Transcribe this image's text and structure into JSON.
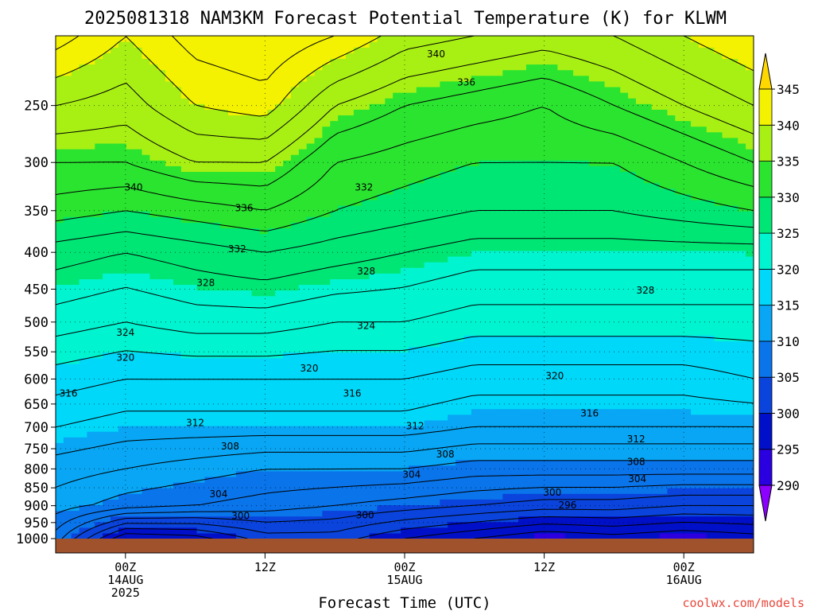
{
  "chart_data": {
    "type": "heatmap",
    "title": "2025081318 NAM3KM Forecast Potential Temperature (K) for KLWM",
    "xlabel": "Forecast Time (UTC)",
    "ylabel": "",
    "credit": "coolwx.com/models",
    "x_range_hours": [
      -6,
      54
    ],
    "x_ticks": [
      {
        "hour": 0,
        "lines": [
          "00Z",
          "14AUG",
          "2025"
        ]
      },
      {
        "hour": 12,
        "lines": [
          "12Z"
        ]
      },
      {
        "hour": 24,
        "lines": [
          "00Z",
          "15AUG"
        ]
      },
      {
        "hour": 36,
        "lines": [
          "12Z"
        ]
      },
      {
        "hour": 48,
        "lines": [
          "00Z",
          "16AUG"
        ]
      }
    ],
    "y_scale": "log",
    "y_range_hPa": [
      1000,
      200
    ],
    "y_ticks": [
      250,
      300,
      350,
      400,
      450,
      500,
      550,
      600,
      650,
      700,
      750,
      800,
      850,
      900,
      950,
      1000
    ],
    "colorbar": {
      "levels": [
        290,
        295,
        300,
        305,
        310,
        315,
        320,
        325,
        330,
        335,
        340,
        345
      ],
      "colors": [
        "#8c00ff",
        "#2a00e0",
        "#0010c8",
        "#0a44dc",
        "#0a74ea",
        "#08a6f4",
        "#00d8fa",
        "#00f4d0",
        "#00e674",
        "#2ae430",
        "#a8f014",
        "#f4f200",
        "#ffd800"
      ]
    },
    "theta_profiles": [
      {
        "hour": -6,
        "theta": [
          307,
          311,
          313,
          316,
          319,
          323,
          327,
          331,
          334,
          338,
          343
        ]
      },
      {
        "hour": 0,
        "theta": [
          296,
          309,
          312,
          315,
          318,
          322,
          326,
          330,
          334,
          337,
          340
        ]
      },
      {
        "hour": 6,
        "theta": [
          297,
          308,
          311,
          315,
          318,
          323,
          327,
          331,
          336,
          340,
          343
        ]
      },
      {
        "hour": 12,
        "theta": [
          301,
          307,
          310,
          315,
          318,
          323,
          328,
          332,
          336,
          341,
          344
        ]
      },
      {
        "hour": 18,
        "theta": [
          301,
          306,
          310,
          315,
          318,
          322,
          327,
          330,
          332,
          336,
          342
        ]
      },
      {
        "hour": 24,
        "theta": [
          298,
          305,
          310,
          315,
          318,
          322,
          326,
          329,
          331,
          334,
          339
        ]
      },
      {
        "hour": 30,
        "theta": [
          296,
          304,
          309,
          314,
          317,
          321,
          325,
          328,
          330,
          333,
          338
        ]
      },
      {
        "hour": 36,
        "theta": [
          294,
          303,
          309,
          314,
          317,
          321,
          325,
          328,
          330,
          332,
          337
        ]
      },
      {
        "hour": 42,
        "theta": [
          295,
          303,
          309,
          314,
          317,
          321,
          325,
          328,
          330,
          334,
          338
        ]
      },
      {
        "hour": 48,
        "theta": [
          294,
          302,
          309,
          314,
          317,
          321,
          325,
          329,
          332,
          336,
          340
        ]
      },
      {
        "hour": 54,
        "theta": [
          295,
          302,
          309,
          314,
          318,
          321,
          325,
          330,
          334,
          338,
          342
        ]
      }
    ],
    "profile_pressures_hPa": [
      1000,
      900,
      800,
      700,
      600,
      500,
      400,
      350,
      300,
      250,
      200
    ],
    "contour_interval": 2,
    "contour_labels": [
      {
        "text": "340",
        "hour": 0.7,
        "p": 325
      },
      {
        "hour": 26.7,
        "p": 212,
        "text": "340"
      },
      {
        "hour": 29.3,
        "p": 232,
        "text": "336"
      },
      {
        "hour": 10.2,
        "p": 347,
        "text": "336"
      },
      {
        "hour": 20.5,
        "p": 325,
        "text": "332"
      },
      {
        "hour": 9.6,
        "p": 396,
        "text": "332"
      },
      {
        "hour": 6.9,
        "p": 441,
        "text": "328"
      },
      {
        "hour": 20.7,
        "p": 425,
        "text": "328"
      },
      {
        "hour": 44.7,
        "p": 452,
        "text": "328"
      },
      {
        "hour": 0.0,
        "p": 517,
        "text": "324"
      },
      {
        "hour": 20.7,
        "p": 506,
        "text": "324"
      },
      {
        "hour": 0.0,
        "p": 560,
        "text": "320"
      },
      {
        "hour": 15.8,
        "p": 580,
        "text": "320"
      },
      {
        "hour": 36.9,
        "p": 594,
        "text": "320"
      },
      {
        "hour": -4.9,
        "p": 628,
        "text": "316"
      },
      {
        "hour": 19.5,
        "p": 628,
        "text": "316"
      },
      {
        "hour": 39.9,
        "p": 670,
        "text": "316"
      },
      {
        "hour": 6.0,
        "p": 690,
        "text": "312"
      },
      {
        "hour": 24.9,
        "p": 697,
        "text": "312"
      },
      {
        "hour": 43.9,
        "p": 727,
        "text": "312"
      },
      {
        "hour": 9.0,
        "p": 744,
        "text": "308"
      },
      {
        "hour": 27.5,
        "p": 763,
        "text": "308"
      },
      {
        "hour": 43.9,
        "p": 782,
        "text": "308"
      },
      {
        "hour": 8.0,
        "p": 867,
        "text": "304"
      },
      {
        "hour": 24.6,
        "p": 815,
        "text": "304"
      },
      {
        "hour": 44.0,
        "p": 826,
        "text": "304"
      },
      {
        "hour": 9.9,
        "p": 930,
        "text": "300"
      },
      {
        "hour": 20.6,
        "p": 928,
        "text": "300"
      },
      {
        "hour": 36.7,
        "p": 863,
        "text": "300"
      },
      {
        "hour": 38.0,
        "p": 898,
        "text": "296"
      }
    ]
  }
}
